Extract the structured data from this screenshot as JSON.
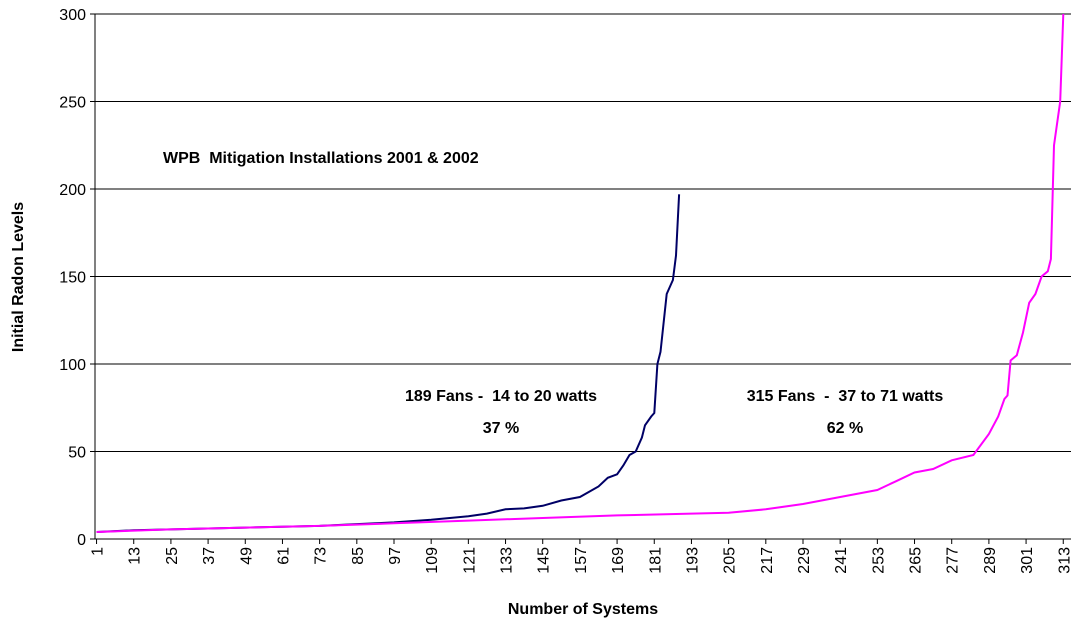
{
  "chart_data": {
    "type": "line",
    "title": "WPB  Mitigation Installations 2001 & 2002",
    "xlabel": "Number of Systems",
    "ylabel": "Initial Radon Levels",
    "annotations": [
      "189 Fans -  14 to 20 watts",
      "37 %",
      "315 Fans  -  37 to 71 watts",
      "62 %"
    ],
    "xlim": [
      0.5,
      315.5
    ],
    "xticks": [
      1,
      13,
      25,
      37,
      49,
      61,
      73,
      85,
      97,
      109,
      121,
      133,
      145,
      157,
      169,
      181,
      193,
      205,
      217,
      229,
      241,
      253,
      265,
      277,
      289,
      301,
      313
    ],
    "ylim": [
      0,
      300
    ],
    "yticks": [
      0,
      50,
      100,
      150,
      200,
      250,
      300
    ],
    "grid": true,
    "series": [
      {
        "color": "#000066",
        "x": [
          1,
          13,
          25,
          37,
          49,
          61,
          73,
          85,
          97,
          109,
          121,
          127,
          133,
          139,
          145,
          151,
          157,
          160,
          163,
          166,
          169,
          171,
          173,
          175,
          177,
          178,
          180,
          181,
          182,
          183,
          185,
          187,
          188,
          189
        ],
        "values": [
          4,
          5,
          5.5,
          6,
          6.5,
          7,
          7.5,
          8.5,
          9.5,
          11,
          13,
          14.5,
          17,
          17.5,
          19,
          22,
          24,
          27,
          30,
          35,
          37,
          42,
          48,
          50,
          58,
          65,
          70,
          72,
          100,
          107,
          140,
          148,
          162,
          197
        ]
      },
      {
        "color": "#ff00ff",
        "x": [
          1,
          25,
          49,
          73,
          97,
          121,
          145,
          169,
          193,
          205,
          217,
          229,
          241,
          253,
          259,
          265,
          271,
          277,
          284,
          289,
          292,
          294,
          295,
          296,
          298,
          300,
          302,
          304,
          306,
          308,
          309,
          310,
          312,
          313
        ],
        "values": [
          4,
          5.5,
          6.5,
          7.5,
          9,
          10.5,
          12,
          13.5,
          14.5,
          15,
          17,
          20,
          24,
          28,
          33,
          38,
          40,
          45,
          48,
          60,
          70,
          80,
          82,
          102,
          105,
          118,
          135,
          140,
          150,
          153,
          160,
          225,
          250,
          300
        ]
      }
    ]
  }
}
